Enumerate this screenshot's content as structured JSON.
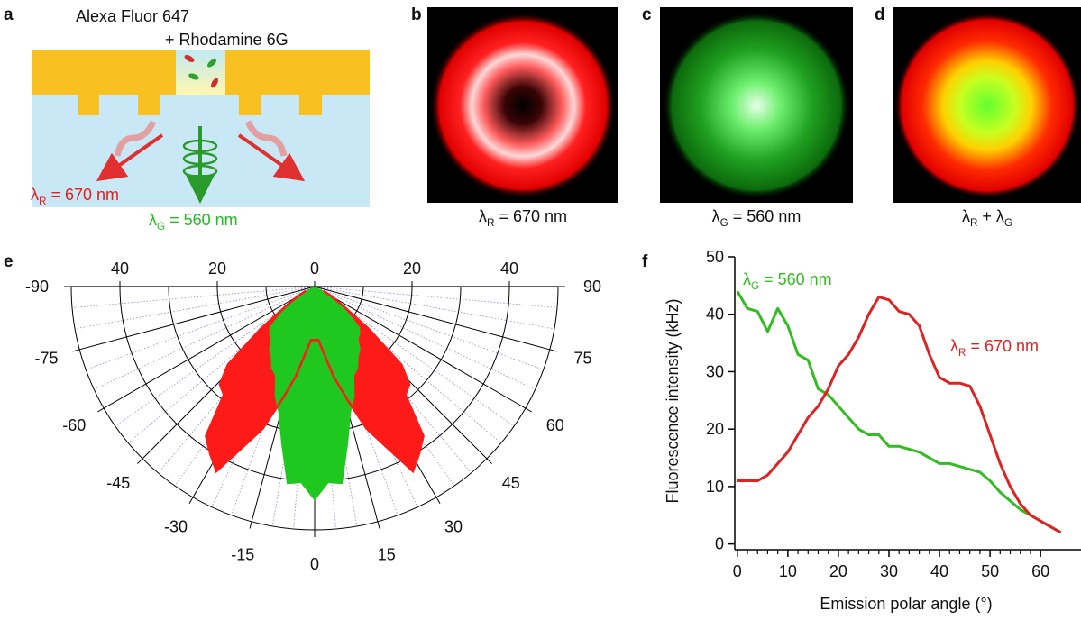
{
  "panel_a": {
    "label": "a",
    "line1": "Alexa Fluor 647",
    "line2": "+ Rhodamine 6G",
    "red": [
      "λ",
      "R",
      " = 670 nm"
    ],
    "green": [
      "λ",
      "G",
      " = 560 nm"
    ]
  },
  "panel_b": {
    "label": "b",
    "caption": [
      "λ",
      "R",
      " = 670 nm"
    ]
  },
  "panel_c": {
    "label": "c",
    "caption": [
      "λ",
      "G",
      " = 560 nm"
    ]
  },
  "panel_d": {
    "label": "d",
    "caption": [
      "λ",
      "R",
      " + λ",
      "G"
    ]
  },
  "chart_data": [
    {
      "panel_label": "e",
      "type": "polar",
      "theta": [
        -64,
        -60,
        -56,
        -52,
        -48,
        -44,
        -40,
        -36,
        -32,
        -28,
        -24,
        -20,
        -16,
        -12,
        -8,
        -4,
        0,
        4,
        8,
        12,
        16,
        20,
        24,
        28,
        32,
        36,
        40,
        44,
        48,
        52,
        56,
        60,
        64
      ],
      "rlim": [
        0,
        50
      ],
      "rticks": [
        0,
        20,
        40
      ],
      "rgrid": [
        10,
        20,
        30,
        40,
        50
      ],
      "thetalim": [
        -90,
        90
      ],
      "thetaticks": [
        -90,
        -75,
        -60,
        -45,
        -30,
        -15,
        0,
        15,
        30,
        45,
        60,
        75,
        90
      ],
      "series": [
        {
          "color": "#ff1a1a",
          "values": [
            2,
            4,
            7,
            14,
            24,
            28,
            29,
            38,
            40.5,
            43,
            36,
            31,
            24,
            19,
            14,
            11,
            11,
            11,
            14,
            19,
            24,
            31,
            36,
            43,
            40.5,
            38,
            29,
            28,
            24,
            14,
            7,
            4,
            2
          ]
        },
        {
          "color": "#1ec81e",
          "values": [
            2,
            4,
            6,
            9,
            12.5,
            13.5,
            14,
            16,
            17,
            19,
            20,
            24,
            27,
            33,
            41,
            40.5,
            44,
            40.5,
            41,
            33,
            27,
            24,
            20,
            19,
            17,
            16,
            14,
            13.5,
            12.5,
            9,
            6,
            4,
            2
          ]
        }
      ]
    },
    {
      "panel_label": "f",
      "type": "line",
      "xlabel": "Emission polar angle (°)",
      "ylabel": "Fluorescence intensity (kHz)",
      "x": [
        0,
        2,
        4,
        6,
        8,
        10,
        12,
        14,
        16,
        18,
        20,
        22,
        24,
        26,
        28,
        30,
        32,
        34,
        36,
        38,
        40,
        42,
        44,
        46,
        48,
        50,
        52,
        54,
        56,
        58,
        60,
        62,
        64
      ],
      "xlim": [
        -0.5,
        68
      ],
      "ylim": [
        -1,
        50
      ],
      "xticks": [
        0,
        10,
        20,
        30,
        40,
        50,
        60
      ],
      "yticks": [
        0,
        10,
        20,
        30,
        40,
        50
      ],
      "series": [
        {
          "name": [
            "λ",
            "G",
            " = 560 nm"
          ],
          "color": "#33bb22",
          "values": [
            44,
            41,
            40.5,
            37,
            41,
            38,
            33,
            32,
            27,
            26,
            24,
            22,
            20,
            19,
            19,
            17,
            17,
            16.5,
            16,
            15,
            14,
            14,
            13.5,
            13,
            12.5,
            11,
            9,
            7.5,
            6,
            5,
            4,
            3,
            2
          ]
        },
        {
          "name": [
            "λ",
            "R",
            " = 670 nm"
          ],
          "color": "#dd2222",
          "values": [
            11,
            11,
            11,
            12,
            14,
            16,
            19,
            22,
            24,
            27,
            31,
            33,
            36,
            40,
            43,
            42.5,
            40.5,
            40,
            38,
            33,
            29,
            28,
            28,
            27.5,
            24,
            19,
            14,
            10,
            7,
            5,
            4,
            3,
            2
          ]
        }
      ]
    }
  ]
}
